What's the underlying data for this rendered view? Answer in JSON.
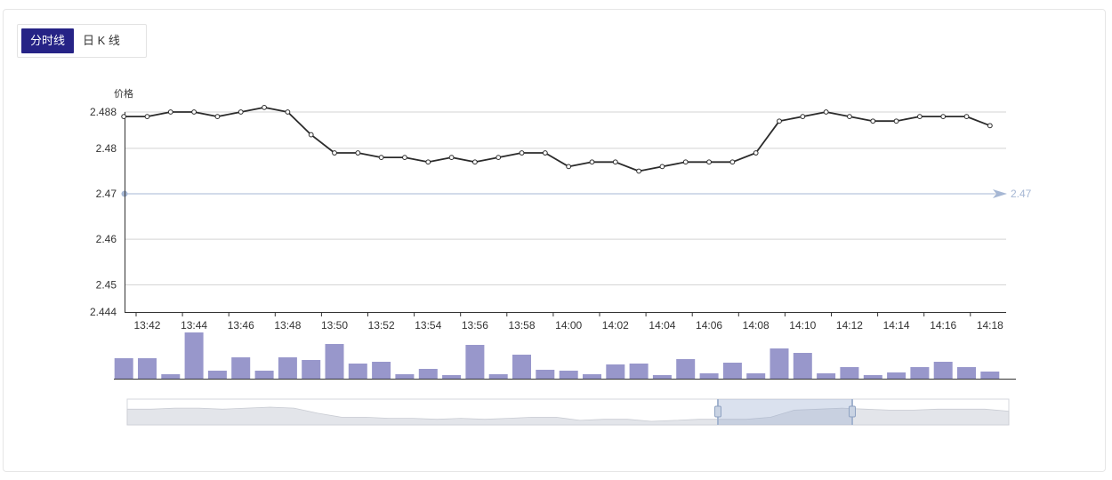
{
  "tabs": [
    {
      "label": "分时线",
      "active": true
    },
    {
      "label": "日 K 线",
      "active": false
    }
  ],
  "chart_data": {
    "type": "line",
    "ylabel": "价格",
    "ytick_labels": [
      "2.488",
      "2.48",
      "2.47",
      "2.46",
      "2.45",
      "2.444"
    ],
    "ylim": [
      2.444,
      2.488
    ],
    "xtick_labels": [
      "13:42",
      "13:44",
      "13:46",
      "13:48",
      "13:50",
      "13:52",
      "13:54",
      "13:56",
      "13:58",
      "14:00",
      "14:02",
      "14:04",
      "14:06",
      "14:08",
      "14:10",
      "14:12",
      "14:14",
      "14:16",
      "14:18"
    ],
    "price": [
      2.487,
      2.487,
      2.488,
      2.488,
      2.487,
      2.488,
      2.489,
      2.488,
      2.483,
      2.479,
      2.479,
      2.478,
      2.478,
      2.477,
      2.478,
      2.477,
      2.478,
      2.479,
      2.479,
      2.476,
      2.477,
      2.477,
      2.475,
      2.476,
      2.477,
      2.477,
      2.477,
      2.479,
      2.486,
      2.487,
      2.488,
      2.487,
      2.486,
      2.486,
      2.487,
      2.487,
      2.487,
      2.485
    ],
    "volume": [
      23,
      23,
      5,
      52,
      9,
      24,
      9,
      24,
      21,
      39,
      17,
      19,
      5,
      11,
      4,
      38,
      5,
      27,
      10,
      9,
      5,
      16,
      17,
      4,
      22,
      6,
      18,
      6,
      34,
      29,
      6,
      13,
      4,
      7,
      13,
      19,
      13,
      8
    ],
    "mark_line": {
      "value": 2.47,
      "label": "2.47"
    },
    "colors": {
      "line": "#2b2b2b",
      "bar": "#9897cb",
      "grid": "#d3d3d3",
      "mark": "#a6b7d4",
      "axis": "#333333"
    },
    "grid": true
  }
}
